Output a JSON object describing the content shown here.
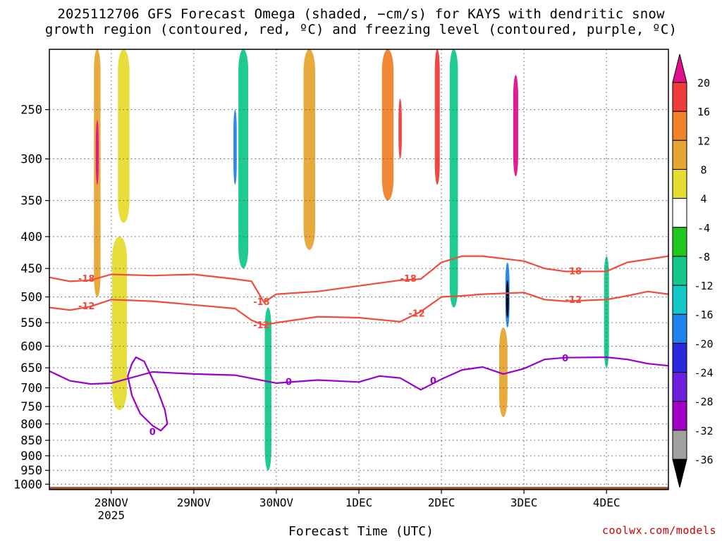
{
  "title_line1": "2025112706 GFS Forecast Omega (shaded, −cm/s) for KAYS with dendritic snow",
  "title_line2": "growth region (contoured, red, ºC) and freezing level (contoured, purple, ºC)",
  "credit": "coolwx.com/models",
  "colors": {
    "isotherm_dgz": "#f04b3c",
    "freezing_level": "#9900cc",
    "ground": "#a0522d",
    "grid": "#888888"
  },
  "chart_data": {
    "type": "heatmap",
    "xlabel": "Forecast Time (UTC)",
    "xlim": [
      27.25,
      34.75
    ],
    "x_ticks": [
      {
        "value": 28,
        "label": "28NOV",
        "sublabel": "2025"
      },
      {
        "value": 29,
        "label": "29NOV",
        "sublabel": ""
      },
      {
        "value": 30,
        "label": "30NOV",
        "sublabel": ""
      },
      {
        "value": 31,
        "label": "1DEC",
        "sublabel": ""
      },
      {
        "value": 32,
        "label": "2DEC",
        "sublabel": ""
      },
      {
        "value": 33,
        "label": "3DEC",
        "sublabel": ""
      },
      {
        "value": 34,
        "label": "4DEC",
        "sublabel": ""
      }
    ],
    "ylabel": "",
    "ylim": [
      1020,
      200
    ],
    "y_scale": "log-pressure",
    "y_ticks": [
      250,
      300,
      350,
      400,
      450,
      500,
      550,
      600,
      650,
      700,
      750,
      800,
      850,
      900,
      950,
      1000
    ],
    "grid": true,
    "colorbar": {
      "position": "right",
      "levels": [
        20,
        16,
        12,
        8,
        4,
        -4,
        -8,
        -12,
        -16,
        -20,
        -24,
        -28,
        -32,
        -36
      ],
      "bins": [
        {
          "label": ">20",
          "color": "#e0108c"
        },
        {
          "label": "16-20",
          "color": "#f03c3c"
        },
        {
          "label": "12-16",
          "color": "#f0822a"
        },
        {
          "label": "8-12",
          "color": "#e6a532"
        },
        {
          "label": "4-8",
          "color": "#e6dc32"
        },
        {
          "label": "-4-4",
          "color": "#ffffff"
        },
        {
          "label": "-8--4",
          "color": "#1ec81e"
        },
        {
          "label": "-12--8",
          "color": "#14c88c"
        },
        {
          "label": "-16--12",
          "color": "#14c8c8"
        },
        {
          "label": "-20--16",
          "color": "#1e82f0"
        },
        {
          "label": "-24--20",
          "color": "#2828dc"
        },
        {
          "label": "-28--24",
          "color": "#6e1edc"
        },
        {
          "label": "-32--28",
          "color": "#a000c8"
        },
        {
          "label": "-36--32",
          "color": "#a0a0a0"
        },
        {
          "label": "<-36",
          "color": "#000000"
        }
      ]
    },
    "omega_features": [
      {
        "x": 27.83,
        "p_top": 200,
        "p_bot": 500,
        "value": 8,
        "width": 0.08
      },
      {
        "x": 27.83,
        "p_top": 260,
        "p_bot": 330,
        "value": 20,
        "width": 0.03
      },
      {
        "x": 28.1,
        "p_top": 400,
        "p_bot": 760,
        "value": 4,
        "width": 0.18
      },
      {
        "x": 28.15,
        "p_top": 200,
        "p_bot": 380,
        "value": 4,
        "width": 0.14
      },
      {
        "x": 29.5,
        "p_top": 250,
        "p_bot": 330,
        "value": -16,
        "width": 0.04
      },
      {
        "x": 29.6,
        "p_top": 200,
        "p_bot": 450,
        "value": -8,
        "width": 0.12
      },
      {
        "x": 29.9,
        "p_top": 520,
        "p_bot": 950,
        "value": -8,
        "width": 0.08
      },
      {
        "x": 30.4,
        "p_top": 200,
        "p_bot": 420,
        "value": 8,
        "width": 0.14
      },
      {
        "x": 31.35,
        "p_top": 200,
        "p_bot": 350,
        "value": 12,
        "width": 0.14
      },
      {
        "x": 31.5,
        "p_top": 240,
        "p_bot": 300,
        "value": 16,
        "width": 0.04
      },
      {
        "x": 31.95,
        "p_top": 200,
        "p_bot": 330,
        "value": 16,
        "width": 0.06
      },
      {
        "x": 32.15,
        "p_top": 200,
        "p_bot": 520,
        "value": -8,
        "width": 0.1
      },
      {
        "x": 32.8,
        "p_top": 440,
        "p_bot": 560,
        "value": -16,
        "width": 0.05
      },
      {
        "x": 32.8,
        "p_top": 470,
        "p_bot": 540,
        "value": -36,
        "width": 0.02
      },
      {
        "x": 32.9,
        "p_top": 220,
        "p_bot": 320,
        "value": 20,
        "width": 0.06
      },
      {
        "x": 32.75,
        "p_top": 560,
        "p_bot": 780,
        "value": 8,
        "width": 0.1
      },
      {
        "x": 34.0,
        "p_top": 430,
        "p_bot": 650,
        "value": -8,
        "width": 0.06
      }
    ],
    "series": [
      {
        "name": "-18",
        "x": [
          27.25,
          27.5,
          27.75,
          28.0,
          28.5,
          29.0,
          29.5,
          29.7,
          29.85,
          30.0,
          30.5,
          31.0,
          31.5,
          31.75,
          32.0,
          32.25,
          32.5,
          33.0,
          33.25,
          33.5,
          34.0,
          34.25,
          34.5,
          34.75
        ],
        "y": [
          465,
          472,
          470,
          460,
          462,
          460,
          468,
          472,
          510,
          495,
          490,
          480,
          470,
          468,
          440,
          430,
          430,
          438,
          450,
          455,
          455,
          440,
          435,
          430
        ]
      },
      {
        "name": "-12",
        "x": [
          27.25,
          27.5,
          27.75,
          28.0,
          28.5,
          29.0,
          29.5,
          29.7,
          29.85,
          30.0,
          30.5,
          31.0,
          31.5,
          31.75,
          32.0,
          32.25,
          32.5,
          33.0,
          33.25,
          33.5,
          34.0,
          34.25,
          34.5,
          34.75
        ],
        "y": [
          520,
          525,
          518,
          505,
          508,
          515,
          522,
          545,
          555,
          550,
          538,
          540,
          548,
          528,
          500,
          498,
          495,
          492,
          505,
          508,
          505,
          498,
          490,
          495
        ]
      },
      {
        "name": "0",
        "x": [
          27.25,
          27.5,
          27.75,
          28.0,
          28.5,
          29.0,
          29.5,
          30.0,
          30.5,
          31.0,
          31.25,
          31.5,
          31.75,
          32.0,
          32.25,
          32.5,
          32.75,
          33.0,
          33.25,
          33.5,
          34.0,
          34.25,
          34.5,
          34.75
        ],
        "y": [
          658,
          682,
          690,
          688,
          660,
          665,
          668,
          688,
          680,
          685,
          670,
          675,
          705,
          678,
          655,
          648,
          665,
          652,
          630,
          626,
          625,
          630,
          640,
          645
        ]
      },
      {
        "name": "0",
        "closed": true,
        "x": [
          28.25,
          28.3,
          28.4,
          28.55,
          28.65,
          28.68,
          28.6,
          28.5,
          28.35,
          28.25,
          28.2
        ],
        "y": [
          640,
          625,
          635,
          700,
          760,
          800,
          820,
          805,
          770,
          720,
          670
        ]
      }
    ],
    "contour_labels": [
      {
        "x": 27.7,
        "p": 468,
        "text": "-18",
        "series": "dgz"
      },
      {
        "x": 27.7,
        "p": 518,
        "text": "-12",
        "series": "dgz"
      },
      {
        "x": 29.82,
        "p": 510,
        "text": "-18",
        "series": "dgz"
      },
      {
        "x": 29.82,
        "p": 556,
        "text": "-12",
        "series": "dgz"
      },
      {
        "x": 31.6,
        "p": 468,
        "text": "-18",
        "series": "dgz"
      },
      {
        "x": 31.7,
        "p": 532,
        "text": "-12",
        "series": "dgz"
      },
      {
        "x": 33.6,
        "p": 455,
        "text": "-18",
        "series": "dgz"
      },
      {
        "x": 33.6,
        "p": 506,
        "text": "-12",
        "series": "dgz"
      },
      {
        "x": 30.15,
        "p": 685,
        "text": "0",
        "series": "frz"
      },
      {
        "x": 31.9,
        "p": 683,
        "text": "0",
        "series": "frz"
      },
      {
        "x": 33.5,
        "p": 628,
        "text": "0",
        "series": "frz"
      },
      {
        "x": 28.5,
        "p": 825,
        "text": "0",
        "series": "frz"
      }
    ],
    "ground_pressure": 1010
  }
}
